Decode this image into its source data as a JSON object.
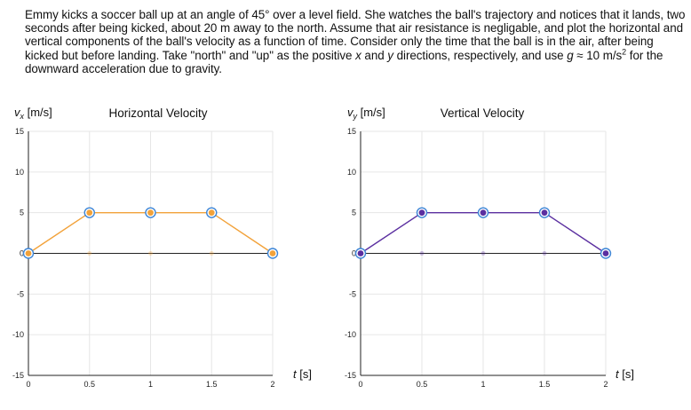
{
  "problem": {
    "line1": "Emmy kicks a soccer ball up at an angle of 45° over a level field. She watches the ball's trajectory and notices that it lands, two seconds after being kicked, about 20 m away to the north. Assume that air resistance is negligable, and plot the horizontal and vertical components of the ball's velocity as a function of time. Consider only the time that the ball is in the air, after being kicked but before landing. Take \"north\" and \"up\" as the positive ",
    "var_x": "x",
    "mid1": " and ",
    "var_y": "y",
    "mid2": " directions, respectively, and use ",
    "var_g": "g",
    "mid3": " ≈ 10 m/s",
    "exp": "2",
    "end": " for the downward acceleration due to gravity."
  },
  "chart_data": [
    {
      "type": "line",
      "title": "Horizontal Velocity",
      "ylabel_var": "v",
      "ylabel_sub": "x",
      "ylabel_unit": " [m/s]",
      "xlabel_var": "t",
      "xlabel_unit": " [s]",
      "x": [
        0,
        0.5,
        1,
        1.5,
        2
      ],
      "y": [
        0,
        5,
        5,
        5,
        0
      ],
      "xlim": [
        0,
        2
      ],
      "ylim": [
        -15,
        15
      ],
      "xticks": [
        "0",
        "0.5",
        "1",
        "1.5",
        "2"
      ],
      "yticks": [
        "15",
        "10",
        "5",
        "0",
        "-5",
        "-10",
        "-15"
      ],
      "color": "#f2a23a",
      "ring_color": "#3d85d6",
      "grid": true
    },
    {
      "type": "line",
      "title": "Vertical Velocity",
      "ylabel_var": "v",
      "ylabel_sub": "y",
      "ylabel_unit": " [m/s]",
      "xlabel_var": "t",
      "xlabel_unit": " [s]",
      "x": [
        0,
        0.5,
        1,
        1.5,
        2
      ],
      "y": [
        0,
        5,
        5,
        5,
        0
      ],
      "xlim": [
        0,
        2
      ],
      "ylim": [
        -15,
        15
      ],
      "xticks": [
        "0",
        "0.5",
        "1",
        "1.5",
        "2"
      ],
      "yticks": [
        "15",
        "10",
        "5",
        "0",
        "-5",
        "-10",
        "-15"
      ],
      "color": "#5b2fa0",
      "ring_color": "#3d85d6",
      "grid": true
    }
  ]
}
